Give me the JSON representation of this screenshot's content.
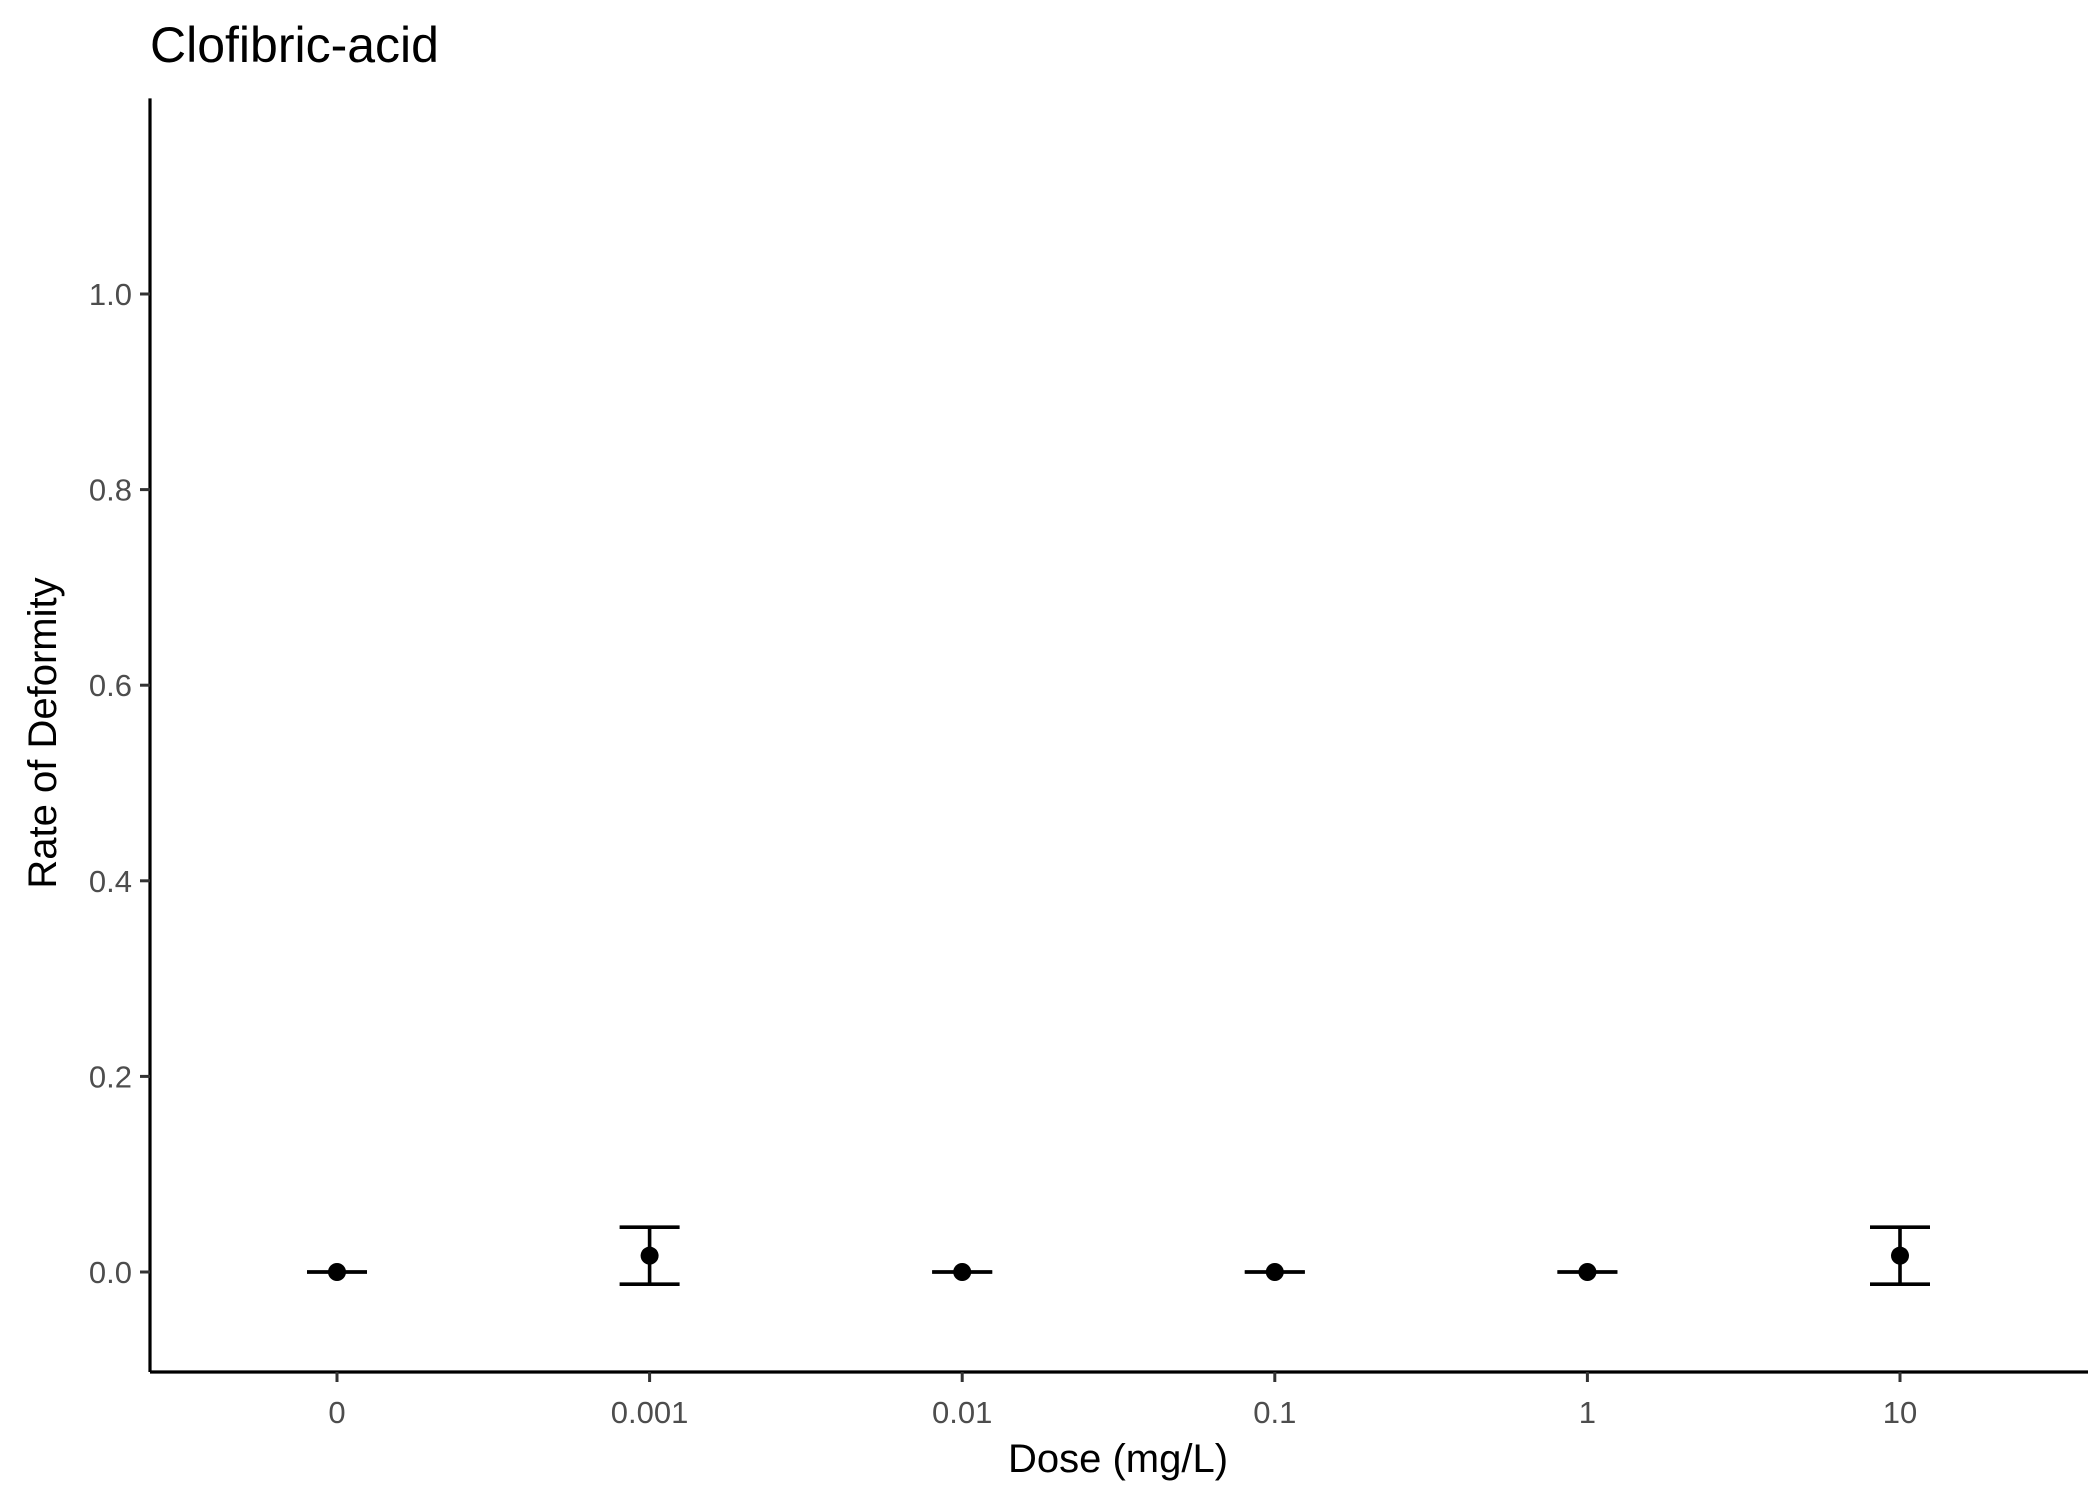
{
  "chart_data": {
    "type": "scatter",
    "title": "Clofibric-acid",
    "xlabel": "Dose (mg/L)",
    "ylabel": "Rate of Deformity",
    "categories": [
      "0",
      "0.001",
      "0.01",
      "0.1",
      "1",
      "10"
    ],
    "values": [
      0.0,
      0.0167,
      0.0,
      0.0,
      0.0,
      0.0167
    ],
    "error_low": [
      0.0,
      -0.0125,
      0.0,
      0.0,
      0.0,
      -0.0125
    ],
    "error_high": [
      0.0,
      0.0458,
      0.0,
      0.0,
      0.0,
      0.0458
    ],
    "yticks": [
      "0.0",
      "0.2",
      "0.4",
      "0.6",
      "0.8",
      "1.0"
    ],
    "ylim": [
      -0.1,
      1.2
    ],
    "grid": false,
    "colors": {
      "points": "#000000",
      "axis": "#000000",
      "tick_labels": "#4d4d4d"
    }
  }
}
